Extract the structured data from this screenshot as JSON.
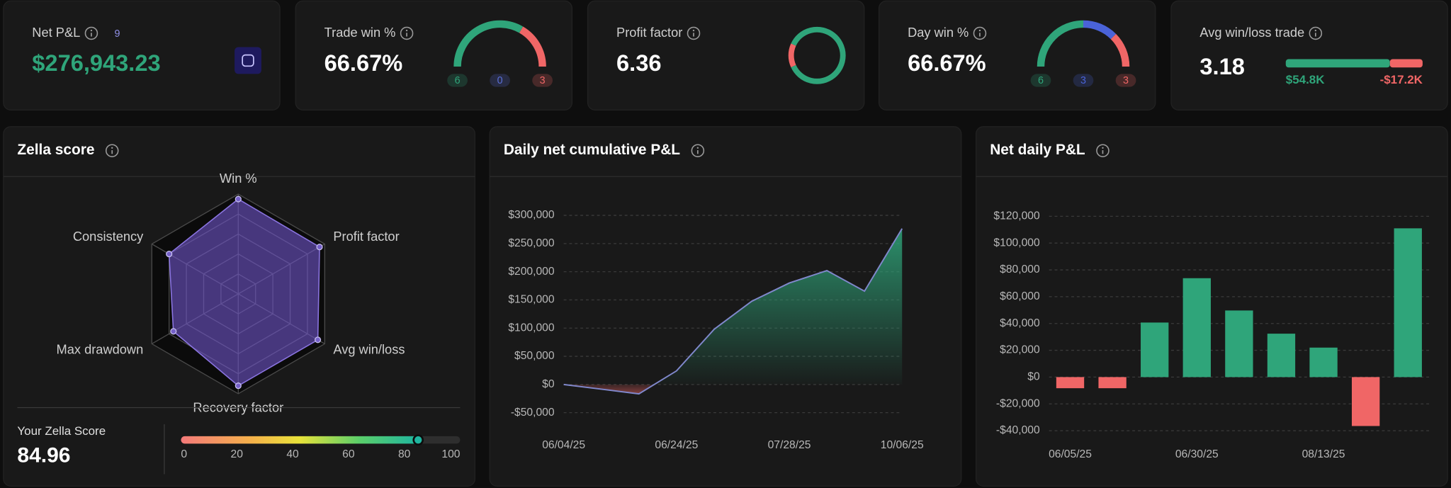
{
  "kpis": [
    {
      "label": "Net P&L",
      "badge": "9",
      "value": "$276,943.23"
    },
    {
      "label": "Trade win %",
      "value": "66.67%",
      "gauge": {
        "counts": [
          6,
          0,
          3
        ],
        "colors": [
          "#2fa57a",
          "#5a6fd6",
          "#f06666"
        ]
      }
    },
    {
      "label": "Profit factor",
      "value": 6.36,
      "colors": [
        "#2fa57a",
        "#f06666"
      ]
    },
    {
      "label": "Day win %",
      "value": "66.67%",
      "gauge": {
        "counts": [
          6,
          3,
          3
        ],
        "colors": [
          "#2fa57a",
          "#4a63d8",
          "#f06666"
        ]
      }
    },
    {
      "label": "Avg win/loss trade",
      "value": 3.18,
      "avg_win": {
        "value": 54800,
        "label": "$54.8K"
      },
      "avg_loss": {
        "value": -17200,
        "label": "-$17.2K"
      },
      "colors": [
        "#2fa57a",
        "#f06666"
      ]
    }
  ],
  "zella": {
    "title": "Zella score",
    "type": "radar",
    "axes": [
      "Win %",
      "Profit factor",
      "Avg win/loss",
      "Recovery factor",
      "Max drawdown",
      "Consistency"
    ],
    "values": [
      95,
      94,
      92,
      92,
      75,
      80
    ],
    "rlim": [
      0,
      100
    ],
    "color": "#6f55c9",
    "score": {
      "label": "Your Zella Score",
      "value": 84.96,
      "xlim": [
        0,
        100
      ],
      "xticks": [
        0,
        20,
        40,
        60,
        80,
        100
      ]
    }
  },
  "cumulative": {
    "title": "Daily net cumulative P&L",
    "type": "area",
    "categories": [
      "06/04/25",
      null,
      null,
      "06/24/25",
      null,
      null,
      "07/28/25",
      null,
      null,
      "10/06/25"
    ],
    "values": [
      0,
      -8300,
      -16600,
      24100,
      97900,
      147600,
      180000,
      202000,
      165500,
      276500
    ],
    "ylim": [
      -50000,
      300000
    ],
    "yticks": [
      {
        "value": -50000,
        "label": "-$50,000"
      },
      {
        "value": 0,
        "label": "$0"
      },
      {
        "value": 50000,
        "label": "$50,000"
      },
      {
        "value": 100000,
        "label": "$100,000"
      },
      {
        "value": 150000,
        "label": "$150,000"
      },
      {
        "value": 200000,
        "label": "$200,000"
      },
      {
        "value": 250000,
        "label": "$250,000"
      },
      {
        "value": 300000,
        "label": "$300,000"
      }
    ],
    "grid": true,
    "line_color": "#8088cc",
    "positive_color": "#2fa57a",
    "negative_color": "#f06666"
  },
  "daily": {
    "title": "Net daily P&L",
    "type": "bar",
    "categories": [
      "06/05/25",
      null,
      null,
      "06/30/25",
      null,
      null,
      "08/13/25",
      null,
      null
    ],
    "values": [
      -8300,
      -8300,
      40700,
      73800,
      49700,
      32400,
      22000,
      -36500,
      111000
    ],
    "ylim": [
      -40000,
      120000
    ],
    "yticks": [
      {
        "value": -40000,
        "label": "-$40,000"
      },
      {
        "value": -20000,
        "label": "-$20,000"
      },
      {
        "value": 0,
        "label": "$0"
      },
      {
        "value": 20000,
        "label": "$20,000"
      },
      {
        "value": 40000,
        "label": "$40,000"
      },
      {
        "value": 60000,
        "label": "$60,000"
      },
      {
        "value": 80000,
        "label": "$80,000"
      },
      {
        "value": 100000,
        "label": "$100,000"
      },
      {
        "value": 120000,
        "label": "$120,000"
      }
    ],
    "grid": true,
    "positive_color": "#2fa57a",
    "negative_color": "#f06666"
  }
}
